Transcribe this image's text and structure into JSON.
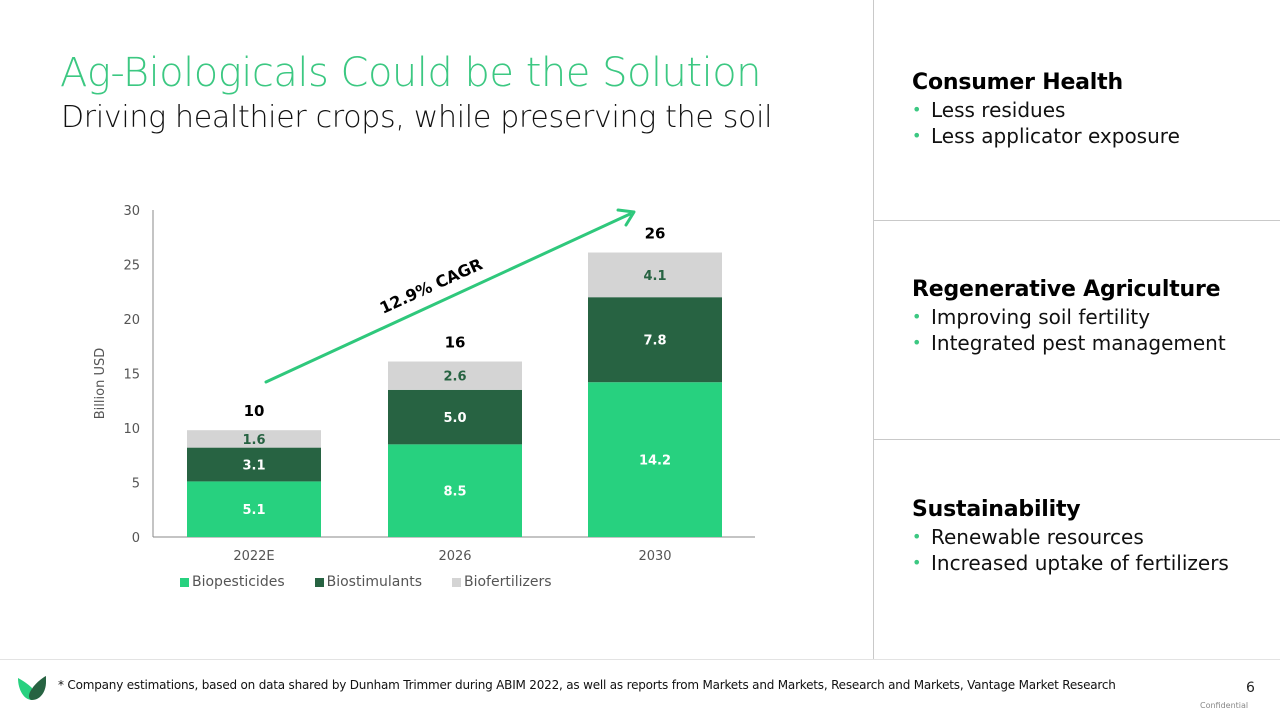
{
  "header": {
    "title": "Ag-Biologicals Could be the Solution",
    "subtitle": "Driving healthier crops, while preserving the soil"
  },
  "colors": {
    "accent": "#3cc882",
    "biopesticides": "#27d17f",
    "biostimulants": "#276342",
    "biofertilizers": "#d4d4d4",
    "cagr_arrow": "#2fc87c"
  },
  "panels": [
    {
      "heading": "Consumer Health",
      "bullets": [
        "Less residues",
        "Less applicator exposure"
      ]
    },
    {
      "heading": "Regenerative Agriculture",
      "bullets": [
        "Improving soil fertility",
        "Integrated pest management"
      ]
    },
    {
      "heading": "Sustainability",
      "bullets": [
        "Renewable resources",
        "Increased uptake of fertilizers"
      ]
    }
  ],
  "chart_data": {
    "type": "bar",
    "stacked": true,
    "title": "",
    "xlabel": "",
    "ylabel": "Billion USD",
    "ylim": [
      0,
      30
    ],
    "yticks": [
      0,
      5,
      10,
      15,
      20,
      25,
      30
    ],
    "grid": false,
    "categories": [
      "2022E",
      "2026",
      "2030"
    ],
    "series": [
      {
        "name": "Biopesticides",
        "values": [
          5.1,
          8.5,
          14.2
        ],
        "labels": [
          "5.1",
          "8.5",
          "14.2"
        ]
      },
      {
        "name": "Biostimulants",
        "values": [
          3.1,
          5.0,
          7.8
        ],
        "labels": [
          "3.1",
          "5.0",
          "7.8"
        ]
      },
      {
        "name": "Biofertilizers",
        "values": [
          1.6,
          2.6,
          4.1
        ],
        "labels": [
          "1.6",
          "2.6",
          "4.1"
        ]
      }
    ],
    "totals": [
      "10",
      "16",
      "26"
    ],
    "annotation": "12.9% CAGR",
    "legend_position": "bottom"
  },
  "footer": {
    "footnote": "* Company estimations, based on data shared by Dunham Trimmer during ABIM 2022, as well as reports from Markets and Markets, Research and Markets, Vantage Market Research",
    "page_number": "6",
    "confidential": "Confidential"
  },
  "icons": {
    "logo": "leaf-logo-icon",
    "bullet": "bullet-dot-icon",
    "arrow": "trend-arrow-icon"
  }
}
